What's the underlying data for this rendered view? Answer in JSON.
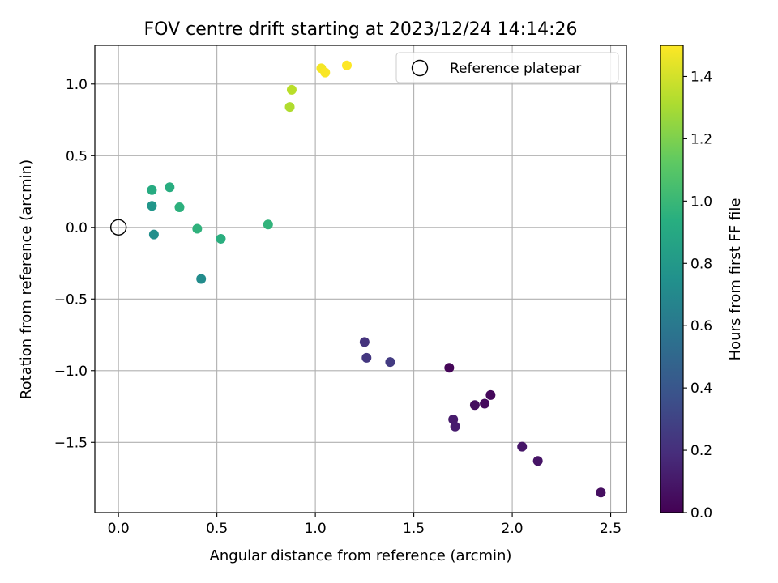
{
  "chart_data": {
    "type": "scatter",
    "title": "FOV centre drift starting at 2023/12/24 14:14:26",
    "xlabel": "Angular distance from reference (arcmin)",
    "ylabel": "Rotation from reference (arcmin)",
    "xlim": [
      -0.12,
      2.58
    ],
    "ylim": [
      -1.99,
      1.27
    ],
    "xticks": [
      0.0,
      0.5,
      1.0,
      1.5,
      2.0,
      2.5
    ],
    "xtick_labels": [
      "0.0",
      "0.5",
      "1.0",
      "1.5",
      "2.0",
      "2.5"
    ],
    "yticks": [
      -1.5,
      -1.0,
      -0.5,
      0.0,
      0.5,
      1.0
    ],
    "ytick_labels": [
      "−1.5",
      "−1.0",
      "−0.5",
      "0.0",
      "0.5",
      "1.0"
    ],
    "grid": true,
    "colormap": "viridis",
    "colorbar": {
      "label": "Hours from first FF file",
      "range": [
        0.0,
        1.5
      ],
      "ticks": [
        0.0,
        0.2,
        0.4,
        0.6,
        0.8,
        1.0,
        1.2,
        1.4
      ],
      "tick_labels": [
        "0.0",
        "0.2",
        "0.4",
        "0.6",
        "0.8",
        "1.0",
        "1.2",
        "1.4"
      ]
    },
    "legend": {
      "placement": "top-right",
      "label": "Reference platepar"
    },
    "reference_point": {
      "x": 0.0,
      "y": 0.0
    },
    "points": [
      {
        "x": 1.68,
        "y": -0.98,
        "c": 0.02
      },
      {
        "x": 1.89,
        "y": -1.17,
        "c": 0.03
      },
      {
        "x": 1.86,
        "y": -1.23,
        "c": 0.04
      },
      {
        "x": 1.81,
        "y": -1.24,
        "c": 0.05
      },
      {
        "x": 2.45,
        "y": -1.85,
        "c": 0.06
      },
      {
        "x": 2.13,
        "y": -1.63,
        "c": 0.08
      },
      {
        "x": 2.05,
        "y": -1.53,
        "c": 0.09
      },
      {
        "x": 1.7,
        "y": -1.34,
        "c": 0.11
      },
      {
        "x": 1.71,
        "y": -1.39,
        "c": 0.12
      },
      {
        "x": 1.25,
        "y": -0.8,
        "c": 0.22
      },
      {
        "x": 1.26,
        "y": -0.91,
        "c": 0.24
      },
      {
        "x": 1.38,
        "y": -0.94,
        "c": 0.26
      },
      {
        "x": 0.42,
        "y": -0.36,
        "c": 0.72
      },
      {
        "x": 0.18,
        "y": -0.05,
        "c": 0.74
      },
      {
        "x": 0.17,
        "y": 0.15,
        "c": 0.78
      },
      {
        "x": 0.17,
        "y": 0.26,
        "c": 0.92
      },
      {
        "x": 0.26,
        "y": 0.28,
        "c": 0.93
      },
      {
        "x": 0.31,
        "y": 0.14,
        "c": 0.95
      },
      {
        "x": 0.4,
        "y": -0.01,
        "c": 0.96
      },
      {
        "x": 0.52,
        "y": -0.08,
        "c": 0.94
      },
      {
        "x": 0.76,
        "y": 0.02,
        "c": 0.97
      },
      {
        "x": 0.87,
        "y": 0.84,
        "c": 1.32
      },
      {
        "x": 0.88,
        "y": 0.96,
        "c": 1.34
      },
      {
        "x": 1.03,
        "y": 1.11,
        "c": 1.48
      },
      {
        "x": 1.05,
        "y": 1.08,
        "c": 1.49
      },
      {
        "x": 1.16,
        "y": 1.13,
        "c": 1.5
      }
    ]
  }
}
